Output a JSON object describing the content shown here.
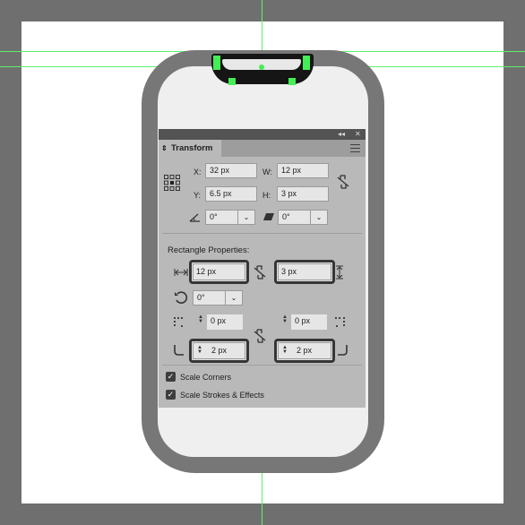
{
  "panel": {
    "collapse_glyph": "◂◂",
    "close_glyph": "✕",
    "tab": {
      "arrows": "⇕",
      "title": "Transform"
    },
    "x_label": "X:",
    "x_value": "32 px",
    "y_label": "Y:",
    "y_value": "6.5 px",
    "w_label": "W:",
    "w_value": "12 px",
    "h_label": "H:",
    "h_value": "3 px",
    "rotate_value": "0°",
    "shear_value": "0°",
    "rect_props_title": "Rectangle Properties:",
    "rect_width": "12 px",
    "rect_height": "3 px",
    "rect_rotate": "0°",
    "corner_tl": "0 px",
    "corner_tr": "0 px",
    "corner_bl": "2 px",
    "corner_br": "2 px",
    "scale_corners_label": "Scale Corners",
    "scale_corners_checked": true,
    "scale_strokes_label": "Scale Strokes & Effects",
    "scale_strokes_checked": true,
    "dropdown_glyph": "⌄"
  },
  "colors": {
    "canvas_bg": "#6f6f6f",
    "artboard": "#ffffff",
    "guide": "#5cf06a",
    "phone_body": "#777777",
    "phone_screen": "#efefef",
    "selection_handle": "#44ee55",
    "panel_bg": "#b9b9b9"
  },
  "icons": {
    "reference_point": "reference-point-icon",
    "link": "link-broken-icon",
    "rotate": "rotate-angle-icon",
    "shear": "shear-icon",
    "width": "width-arrows-icon",
    "height": "height-arrows-icon",
    "rect_rotate": "rotate-circle-icon"
  }
}
